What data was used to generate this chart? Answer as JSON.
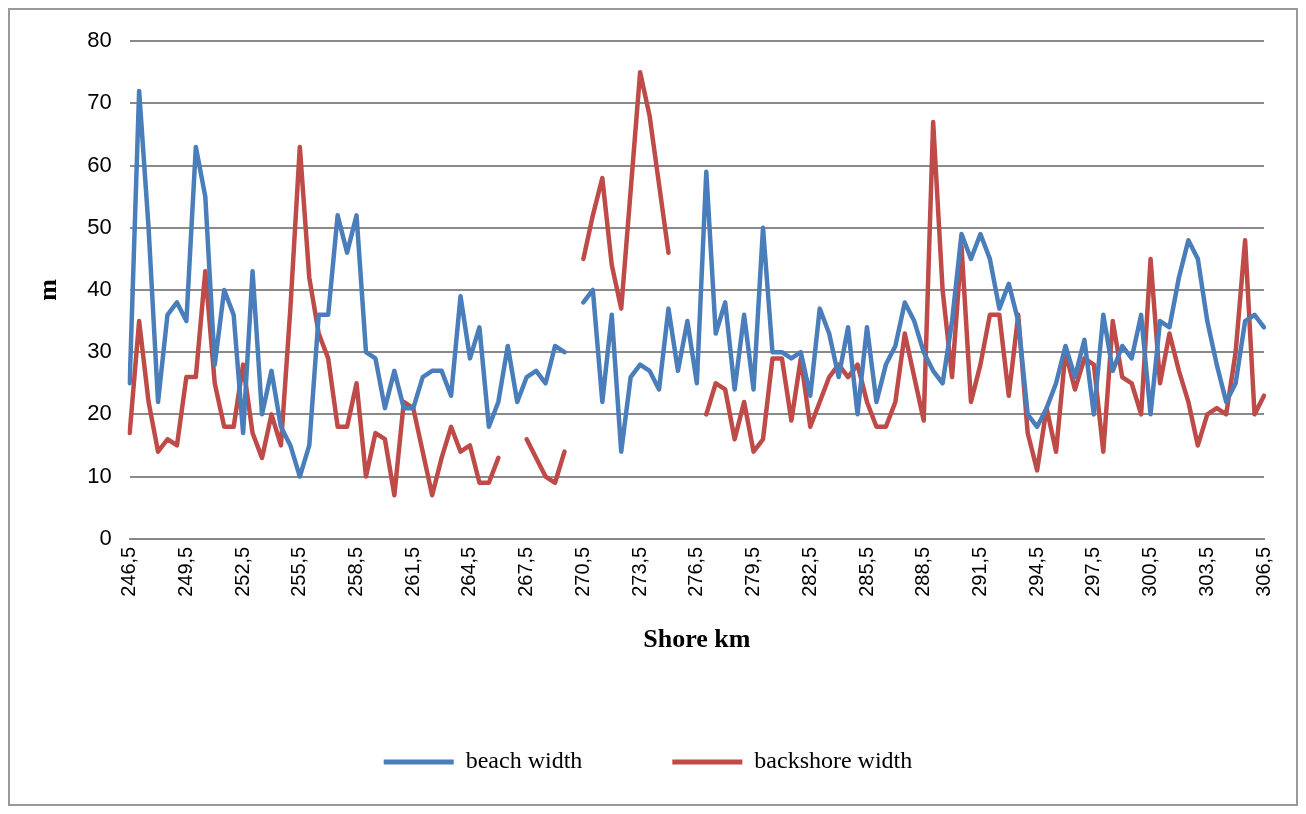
{
  "chart_data": {
    "type": "line",
    "xlabel": "Shore km",
    "ylabel": "m",
    "categories": [
      "246,5",
      null,
      null,
      null,
      null,
      null,
      "249,5",
      null,
      null,
      null,
      null,
      null,
      "252,5",
      null,
      null,
      null,
      null,
      null,
      "255,5",
      null,
      null,
      null,
      null,
      null,
      "258,5",
      null,
      null,
      null,
      null,
      null,
      "261,5",
      null,
      null,
      null,
      null,
      null,
      "264,5",
      null,
      null,
      null,
      null,
      null,
      "267,5",
      null,
      null,
      null,
      null,
      null,
      "270,5",
      null,
      null,
      null,
      null,
      null,
      "273,5",
      null,
      null,
      null,
      null,
      null,
      "276,5",
      null,
      null,
      null,
      null,
      null,
      "279,5",
      null,
      null,
      null,
      null,
      null,
      "282,5",
      null,
      null,
      null,
      null,
      null,
      "285,5",
      null,
      null,
      null,
      null,
      null,
      "288,5",
      null,
      null,
      null,
      null,
      null,
      "291,5",
      null,
      null,
      null,
      null,
      null,
      "294,5",
      null,
      null,
      null,
      null,
      null,
      "297,5",
      null,
      null,
      null,
      null,
      null,
      "300,5",
      null,
      null,
      null,
      null,
      null,
      "303,5",
      null,
      null,
      null,
      null,
      null,
      "306,5"
    ],
    "series": [
      {
        "name": "beach width",
        "color": "#4a7ebb",
        "values": [
          25,
          72,
          50,
          22,
          36,
          38,
          35,
          63,
          55,
          28,
          40,
          36,
          17,
          43,
          20,
          27,
          18,
          15,
          10,
          15,
          36,
          36,
          52,
          46,
          52,
          30,
          29,
          21,
          27,
          21,
          21,
          26,
          27,
          27,
          23,
          39,
          29,
          34,
          18,
          22,
          31,
          22,
          26,
          27,
          25,
          31,
          30,
          null,
          38,
          40,
          22,
          36,
          14,
          26,
          28,
          27,
          24,
          37,
          27,
          35,
          25,
          59,
          33,
          38,
          24,
          36,
          24,
          50,
          30,
          30,
          29,
          30,
          23,
          37,
          33,
          26,
          34,
          20,
          34,
          22,
          28,
          31,
          38,
          35,
          30,
          27,
          25,
          35,
          49,
          45,
          49,
          45,
          37,
          41,
          35,
          20,
          18,
          21,
          25,
          31,
          26,
          32,
          20,
          36,
          27,
          31,
          29,
          36,
          20,
          35,
          34,
          42,
          48,
          45,
          35,
          28,
          22,
          25,
          35,
          36,
          34
        ]
      },
      {
        "name": "backshore width",
        "color": "#be4b48",
        "values": [
          17,
          35,
          22,
          14,
          16,
          15,
          26,
          26,
          43,
          25,
          18,
          18,
          28,
          17,
          13,
          20,
          15,
          37,
          63,
          42,
          33,
          29,
          18,
          18,
          25,
          10,
          17,
          16,
          7,
          22,
          21,
          14,
          7,
          13,
          18,
          14,
          15,
          9,
          9,
          13,
          null,
          null,
          16,
          13,
          10,
          9,
          14,
          null,
          45,
          52,
          58,
          44,
          37,
          56,
          75,
          68,
          57,
          46,
          null,
          null,
          null,
          20,
          25,
          24,
          16,
          22,
          14,
          16,
          29,
          29,
          19,
          29,
          18,
          22,
          26,
          28,
          26,
          28,
          22,
          18,
          18,
          22,
          33,
          26,
          19,
          67,
          40,
          26,
          47,
          22,
          28,
          36,
          36,
          23,
          36,
          17,
          11,
          21,
          14,
          30,
          24,
          29,
          28,
          14,
          35,
          26,
          25,
          20,
          45,
          25,
          33,
          27,
          22,
          15,
          20,
          21,
          20,
          30,
          48,
          20,
          23
        ]
      }
    ],
    "ylim": [
      0,
      80
    ],
    "yticks": [
      0,
      10,
      20,
      30,
      40,
      50,
      60,
      70,
      80
    ],
    "grid": "y",
    "legend": "bottom",
    "marker": "none",
    "line_style": "solid"
  }
}
